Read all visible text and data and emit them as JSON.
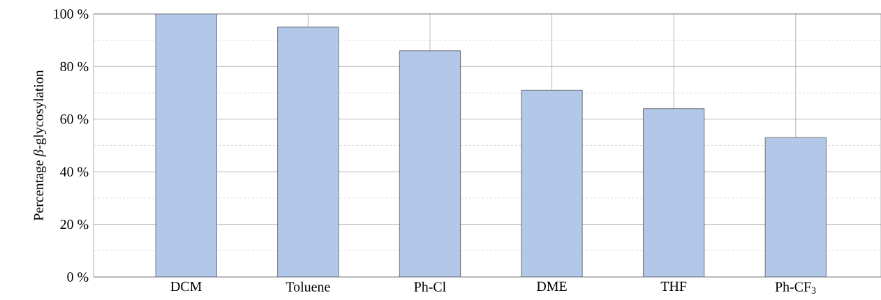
{
  "chart_data": {
    "type": "bar",
    "ylabel": "Percentage *β*-glycosylation",
    "categories": [
      "DCM",
      "Toluene",
      "Ph-Cl",
      "DME",
      "THF",
      "Ph-CF$_{3}$"
    ],
    "values": [
      100,
      95,
      86,
      71,
      64,
      53
    ],
    "color": "#b3c8e8",
    "ylim": [
      0,
      100
    ],
    "yticks": [
      {
        "value": 0,
        "label": "0 %"
      },
      {
        "value": 10,
        "label": null
      },
      {
        "value": 20,
        "label": "20 %"
      },
      {
        "value": 30,
        "label": null
      },
      {
        "value": 40,
        "label": "40 %"
      },
      {
        "value": 50,
        "label": null
      },
      {
        "value": 60,
        "label": "60 %"
      },
      {
        "value": 70,
        "label": null
      },
      {
        "value": 80,
        "label": "80 %"
      },
      {
        "value": 90,
        "label": null
      },
      {
        "value": 100,
        "label": "100 %"
      }
    ],
    "grid": true
  }
}
